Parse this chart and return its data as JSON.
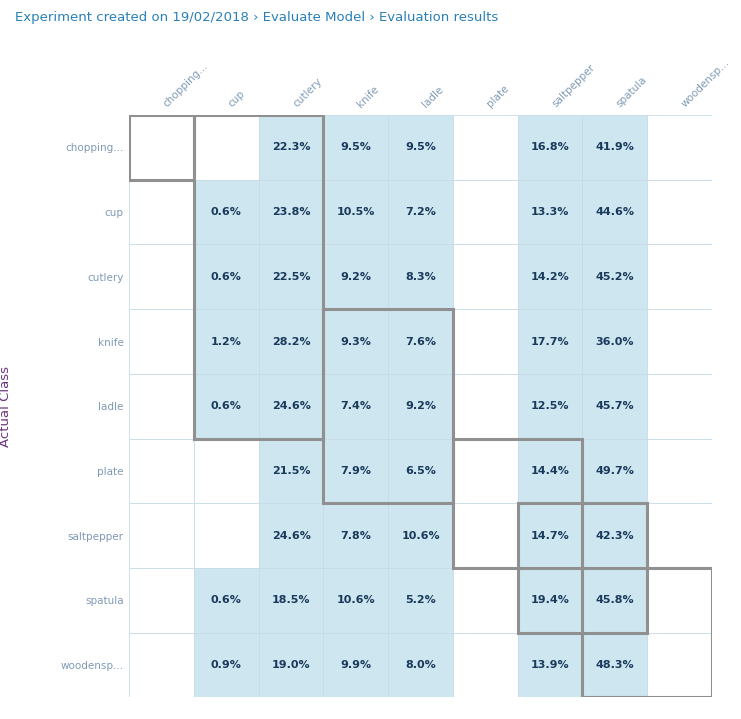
{
  "title": "Experiment created on 19/02/2018 › Evaluate Model › Evaluation results",
  "classes": [
    "chopping...",
    "cup",
    "cutlery",
    "knife",
    "ladle",
    "plate",
    "saltpepper",
    "spatula",
    "woodensp..."
  ],
  "ylabel": "Actual Class",
  "matrix": [
    [
      "",
      "",
      "22.3%",
      "9.5%",
      "9.5%",
      "",
      "16.8%",
      "41.9%",
      ""
    ],
    [
      "",
      "0.6%",
      "23.8%",
      "10.5%",
      "7.2%",
      "",
      "13.3%",
      "44.6%",
      ""
    ],
    [
      "",
      "0.6%",
      "22.5%",
      "9.2%",
      "8.3%",
      "",
      "14.2%",
      "45.2%",
      ""
    ],
    [
      "",
      "1.2%",
      "28.2%",
      "9.3%",
      "7.6%",
      "",
      "17.7%",
      "36.0%",
      ""
    ],
    [
      "",
      "0.6%",
      "24.6%",
      "7.4%",
      "9.2%",
      "",
      "12.5%",
      "45.7%",
      ""
    ],
    [
      "",
      "",
      "21.5%",
      "7.9%",
      "6.5%",
      "",
      "14.4%",
      "49.7%",
      ""
    ],
    [
      "",
      "",
      "24.6%",
      "7.8%",
      "10.6%",
      "",
      "14.7%",
      "42.3%",
      ""
    ],
    [
      "",
      "0.6%",
      "18.5%",
      "10.6%",
      "5.2%",
      "",
      "19.4%",
      "45.8%",
      ""
    ],
    [
      "",
      "0.9%",
      "19.0%",
      "9.9%",
      "8.0%",
      "",
      "13.9%",
      "48.3%",
      ""
    ]
  ],
  "lightblue_color": "#cde6f0",
  "title_color": "#2980b9",
  "text_color": "#1a3a5c",
  "ylabel_color": "#6c3483",
  "label_color": "#7f9ab5",
  "cell_border_color": "#c8dce8",
  "group_box_color": "#909090",
  "bg_color": "#ffffff",
  "group_boxes": [
    {
      "r0": 0,
      "r1": 0,
      "c0": 0,
      "c1": 0
    },
    {
      "r0": 0,
      "r1": 4,
      "c0": 1,
      "c1": 2
    },
    {
      "r0": 3,
      "r1": 5,
      "c0": 3,
      "c1": 4
    },
    {
      "r0": 5,
      "r1": 6,
      "c0": 5,
      "c1": 6
    },
    {
      "r0": 6,
      "r1": 7,
      "c0": 6,
      "c1": 7
    },
    {
      "r0": 7,
      "r1": 8,
      "c0": 7,
      "c1": 8
    }
  ],
  "title_fontsize": 9.5,
  "label_fontsize": 7.5,
  "cell_fontsize": 8.0,
  "ylabel_fontsize": 9.5
}
